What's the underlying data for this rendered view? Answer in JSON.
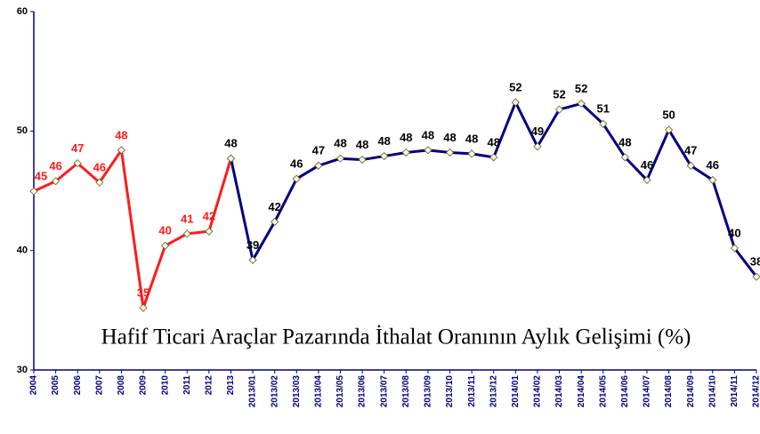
{
  "chart_data": {
    "type": "line",
    "annotation": "Hafif Ticari Araçlar Pazarında İthalat Oranının Aylık Gelişimi (%)",
    "categories": [
      "2004",
      "2005",
      "2006",
      "2007",
      "2008",
      "2009",
      "2010",
      "2011",
      "2012",
      "2013",
      "2013/01",
      "2013/02",
      "2013/03",
      "2013/04",
      "2013/05",
      "2013/06",
      "2013/07",
      "2013/08",
      "2013/09",
      "2013/10",
      "2013/11",
      "2013/12",
      "2014/01",
      "2014/02",
      "2014/03",
      "2014/04",
      "2014/05",
      "2014/06",
      "2014/07",
      "2014/08",
      "2014/09",
      "2014/10",
      "2014/11",
      "2014/12"
    ],
    "series": [
      {
        "color": "#ff1a1a",
        "values": [
          44.96,
          45.8,
          47.3,
          45.7,
          48.4,
          35.2,
          40.4,
          41.4,
          41.6,
          47.7,
          null,
          null,
          null,
          null,
          null,
          null,
          null,
          null,
          null,
          null,
          null,
          null,
          null,
          null,
          null,
          null,
          null,
          null,
          null,
          null,
          null,
          null,
          null,
          null
        ],
        "value_labels": [
          "45",
          "46",
          "47",
          "46",
          "48",
          "35",
          "40",
          "41",
          "42",
          null,
          null,
          null,
          null,
          null,
          null,
          null,
          null,
          null,
          null,
          null,
          null,
          null,
          null,
          null,
          null,
          null,
          null,
          null,
          null,
          null,
          null,
          null,
          null,
          null
        ]
      },
      {
        "color": "#000080",
        "values": [
          null,
          null,
          null,
          null,
          null,
          null,
          null,
          null,
          null,
          47.7,
          39.2,
          42.4,
          46.0,
          47.1,
          47.7,
          47.6,
          47.9,
          48.2,
          48.4,
          48.2,
          48.1,
          47.8,
          52.4,
          48.7,
          51.8,
          52.3,
          50.6,
          47.8,
          45.9,
          50.1,
          47.1,
          45.9,
          40.2,
          37.8
        ],
        "value_labels": [
          null,
          null,
          null,
          null,
          null,
          null,
          null,
          null,
          null,
          "48",
          "39",
          "42",
          "46",
          "47",
          "48",
          "48",
          "48",
          "48",
          "48",
          "48",
          "48",
          "48",
          "52",
          "49",
          "52",
          "52",
          "51",
          "48",
          "46",
          "50",
          "47",
          "46",
          "40",
          "38"
        ]
      }
    ],
    "ylim": [
      30,
      60
    ],
    "yticks": [
      30,
      40,
      50,
      60
    ],
    "grid": false
  }
}
